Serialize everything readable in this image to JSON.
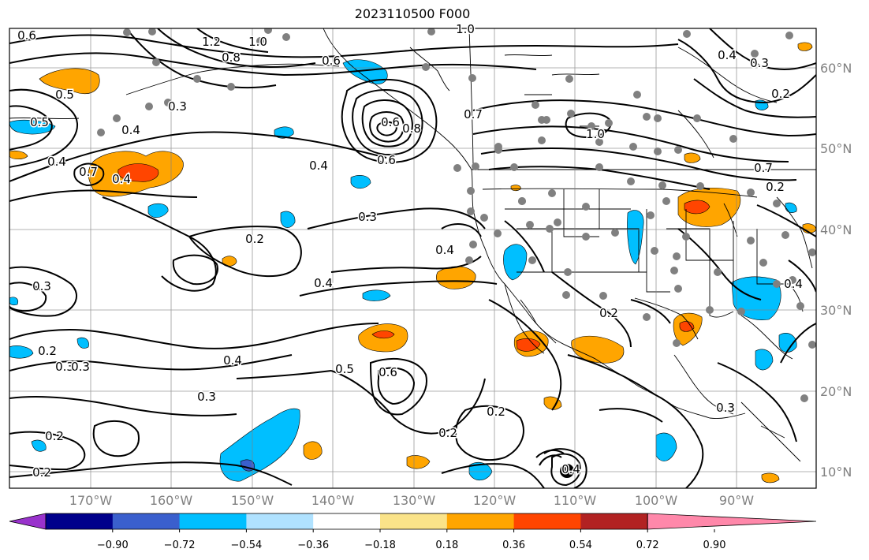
{
  "title": "2023110500 F000",
  "latitude_labels": [
    "60°N",
    "50°N",
    "40°N",
    "30°N",
    "20°N",
    "10°N"
  ],
  "longitude_labels": [
    "170°W",
    "160°W",
    "150°W",
    "140°W",
    "130°W",
    "120°W",
    "110°W",
    "100°W",
    "90°W"
  ],
  "colorbar": {
    "colors": [
      "#9932cc",
      "#00008b",
      "#3a5fcd",
      "#00bfff",
      "#b0e2ff",
      "#ffffff",
      "#fae389",
      "#ffa500",
      "#ff4500",
      "#b22222",
      "#ff88aa"
    ],
    "tick_labels": [
      "−0.90",
      "−0.72",
      "−0.54",
      "−0.36",
      "−0.18",
      "0.18",
      "0.36",
      "0.54",
      "0.72",
      "0.90"
    ]
  },
  "contour_labels": [
    "0.6",
    "1.2",
    "1.0",
    "1.0",
    "0.8",
    "0.6",
    "0.4",
    "0.3",
    "0.2",
    "0.5",
    "0.7",
    "0.4",
    "0.5",
    "0.4",
    "0.7",
    "0.6",
    "0.3",
    "0.8",
    "0.6",
    "0.7",
    "1.0",
    "0.4",
    "0.3",
    "0.2",
    "0.4",
    "0.3",
    "0.3",
    "0.2",
    "0.4",
    "0.5",
    "0.6",
    "0.2",
    "0.2",
    "0.4",
    "0.3",
    "0.2",
    "0.4",
    "0.3",
    "0.2",
    "0.2",
    "0.2",
    "0.3",
    "0.4",
    "0.4"
  ],
  "station_marker_color": "#808080",
  "storm_marker_color": "#000000"
}
